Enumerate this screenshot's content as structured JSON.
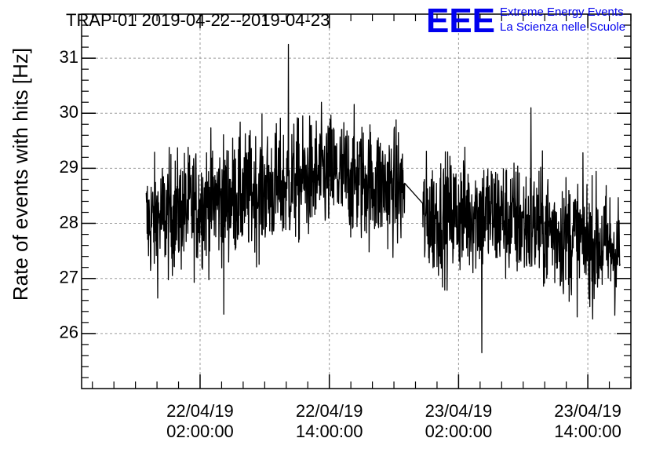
{
  "chart_data": {
    "type": "line",
    "title": "TRAP-01 2019-04-22--2019-04-23",
    "xlabel": "",
    "ylabel": "Rate of events with hits [Hz]",
    "xlim": [
      "2019-04-21 15:00:00",
      "2019-04-23 18:00:00"
    ],
    "ylim": [
      25,
      31.8
    ],
    "yticks": [
      26,
      27,
      28,
      29,
      30,
      31
    ],
    "xticks": [
      {
        "t": "2019-04-22 02:00:00",
        "date": "22/04/19",
        "time": "02:00:00"
      },
      {
        "t": "2019-04-22 14:00:00",
        "date": "22/04/19",
        "time": "14:00:00"
      },
      {
        "t": "2019-04-23 02:00:00",
        "date": "23/04/19",
        "time": "02:00:00"
      },
      {
        "t": "2019-04-23 14:00:00",
        "date": "23/04/19",
        "time": "14:00:00"
      }
    ],
    "grid": true,
    "series": [
      {
        "color": "#000000",
        "segments": [
          {
            "start": "2019-04-21 21:00:00",
            "end": "2019-04-22 21:00:00",
            "trend": [
              [
                "2019-04-21 21:00:00",
                28.0
              ],
              [
                "2019-04-22 03:00:00",
                28.4
              ],
              [
                "2019-04-22 08:00:00",
                28.6
              ],
              [
                "2019-04-22 14:00:00",
                28.9
              ],
              [
                "2019-04-22 21:00:00",
                28.6
              ]
            ],
            "noise": 0.55,
            "max": 31.25,
            "min": 26.35
          },
          {
            "start": "2019-04-22 22:40:00",
            "end": "2019-04-23 17:00:00",
            "trend": [
              [
                "2019-04-22 22:40:00",
                28.1
              ],
              [
                "2019-04-23 04:00:00",
                28.2
              ],
              [
                "2019-04-23 10:00:00",
                27.9
              ],
              [
                "2019-04-23 17:00:00",
                27.5
              ]
            ],
            "noise": 0.55,
            "max": 30.1,
            "min": 25.65
          }
        ]
      }
    ]
  },
  "logo": {
    "mark": "EEE",
    "line1": "Extreme Energy Events",
    "line2": "La Scienza nelle Scuole",
    "color": "#0000ee"
  }
}
